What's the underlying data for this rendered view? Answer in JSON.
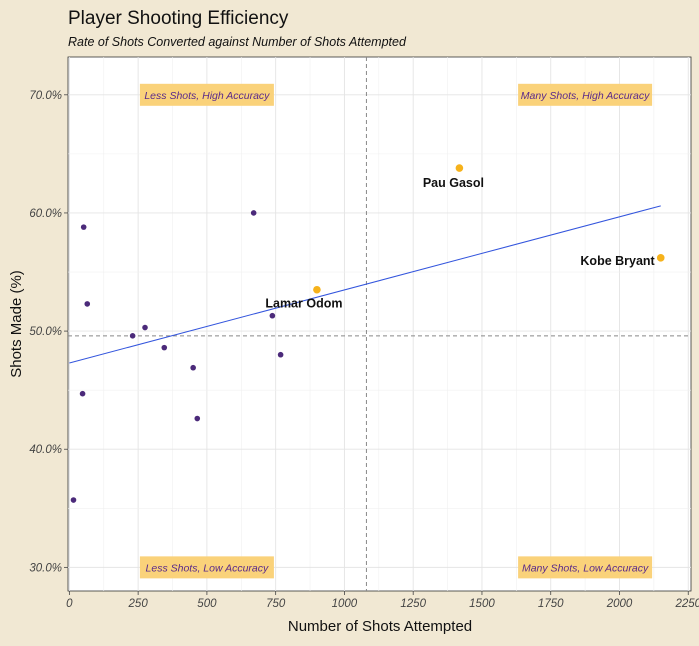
{
  "chart_data": {
    "type": "scatter",
    "title": "Player Shooting Efficiency",
    "subtitle": "Rate of Shots Converted against Number of Shots Attempted",
    "xlabel": "Number of Shots Attempted",
    "ylabel": "Shots Made (%)",
    "xlim": [
      -5,
      2260
    ],
    "ylim": [
      28.0,
      73.2
    ],
    "x_ticks": [
      0,
      250,
      500,
      750,
      1000,
      1250,
      1500,
      1750,
      2000,
      2250
    ],
    "x_tick_labels": [
      "0",
      "250",
      "500",
      "750",
      "1000",
      "1250",
      "1500",
      "1750",
      "2000",
      "2250"
    ],
    "y_ticks": [
      30,
      40,
      50,
      60,
      70
    ],
    "y_tick_labels": [
      "30.0%",
      "40.0%",
      "50.0%",
      "60.0%",
      "70.0%"
    ],
    "grid": true,
    "legend": "none",
    "colors": {
      "background": "#f1e8d3",
      "panel": "#ffffff",
      "regular_point": "#4b2a7a",
      "highlight_point": "#f6b21b",
      "trend_line": "#3355dd",
      "quadrant_box": "#fad27a",
      "quadrant_text": "#5a2a8a",
      "reference_line": "#888888"
    },
    "reference_lines": {
      "x": 1080,
      "y": 49.6
    },
    "trend_line": {
      "x": [
        0,
        2150
      ],
      "y": [
        47.3,
        60.6
      ]
    },
    "points": [
      {
        "x": 15,
        "y": 35.7
      },
      {
        "x": 48,
        "y": 44.7
      },
      {
        "x": 52,
        "y": 58.8
      },
      {
        "x": 65,
        "y": 52.3
      },
      {
        "x": 230,
        "y": 49.6
      },
      {
        "x": 275,
        "y": 50.3
      },
      {
        "x": 345,
        "y": 48.6
      },
      {
        "x": 450,
        "y": 46.9
      },
      {
        "x": 465,
        "y": 42.6
      },
      {
        "x": 670,
        "y": 60.0
      },
      {
        "x": 738,
        "y": 51.3
      },
      {
        "x": 768,
        "y": 48.0
      }
    ],
    "highlighted": [
      {
        "name": "Pau Gasol",
        "x": 1418,
        "y": 63.8
      },
      {
        "name": "Lamar Odom",
        "x": 900,
        "y": 53.5
      },
      {
        "name": "Kobe Bryant",
        "x": 2150,
        "y": 56.2
      }
    ],
    "quadrant_labels": [
      {
        "text": "Less Shots, High Accuracy",
        "x": 500,
        "y": 70.0
      },
      {
        "text": "Many Shots, High Accuracy",
        "x": 1875,
        "y": 70.0
      },
      {
        "text": "Less Shots, Low Accuracy",
        "x": 500,
        "y": 30.0
      },
      {
        "text": "Many Shots, Low Accuracy",
        "x": 1875,
        "y": 30.0
      }
    ]
  }
}
